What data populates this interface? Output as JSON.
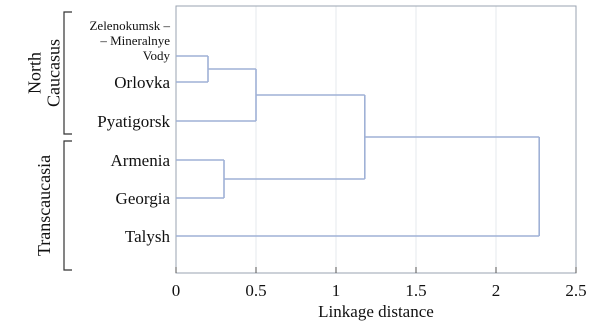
{
  "chart_data": {
    "type": "dendrogram",
    "xlabel": "Linkage distance",
    "xlim": [
      0,
      2.5
    ],
    "xticks": [
      0,
      0.5,
      1,
      1.5,
      2,
      2.5
    ],
    "xtick_labels": [
      "0",
      "0.5",
      "1",
      "1.5",
      "2",
      "2.5"
    ],
    "grid": true,
    "leaves": [
      {
        "id": "zm",
        "label_lines": [
          "Zelenokumsk –",
          "– Mineralnye",
          "Vody"
        ]
      },
      {
        "id": "or",
        "label_lines": [
          "Orlovka"
        ]
      },
      {
        "id": "py",
        "label_lines": [
          "Pyatigorsk"
        ]
      },
      {
        "id": "ar",
        "label_lines": [
          "Armenia"
        ]
      },
      {
        "id": "ge",
        "label_lines": [
          "Georgia"
        ]
      },
      {
        "id": "ta",
        "label_lines": [
          "Talysh"
        ]
      }
    ],
    "merges": [
      {
        "id": "m1",
        "children": [
          "zm",
          "or"
        ],
        "distance": 0.2
      },
      {
        "id": "m2",
        "children": [
          "m1",
          "py"
        ],
        "distance": 0.5
      },
      {
        "id": "m3",
        "children": [
          "ar",
          "ge"
        ],
        "distance": 0.3
      },
      {
        "id": "m4",
        "children": [
          "m2",
          "m3"
        ],
        "distance": 1.18
      },
      {
        "id": "m5",
        "children": [
          "m4",
          "ta"
        ],
        "distance": 2.27
      }
    ],
    "groups": [
      {
        "label_lines": [
          "North",
          "Caucasus"
        ],
        "leaves": [
          "zm",
          "or",
          "py"
        ]
      },
      {
        "label_lines": [
          "Transcaucasia"
        ],
        "leaves": [
          "ar",
          "ge",
          "ta"
        ]
      }
    ]
  }
}
